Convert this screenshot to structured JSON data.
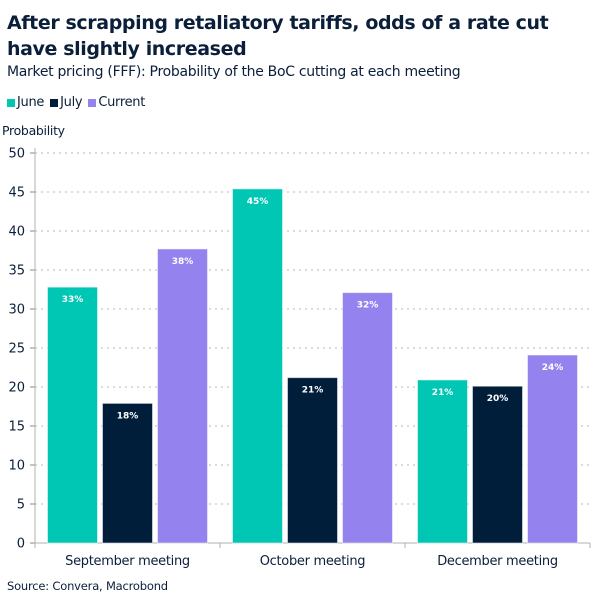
{
  "chart_data": {
    "type": "bar",
    "title": "After scrapping retaliatory tariffs, odds of a rate cut have slightly increased",
    "subtitle": "Market pricing (FFF): Probability of the BoC cutting at each meeting",
    "ylabel": "Probability",
    "xlabel": "",
    "ylim": [
      0,
      50
    ],
    "yticks": [
      0,
      5,
      10,
      15,
      20,
      25,
      30,
      35,
      40,
      45,
      50
    ],
    "grid": true,
    "legend_position": "top-left",
    "categories": [
      "September meeting",
      "October meeting",
      "December meeting"
    ],
    "series": [
      {
        "name": "June",
        "color": "#00c7b4",
        "values": [
          32.8,
          45.4,
          20.9
        ],
        "labels": [
          "33%",
          "45%",
          "21%"
        ]
      },
      {
        "name": "July",
        "color": "#001e3a",
        "values": [
          17.9,
          21.2,
          20.1
        ],
        "labels": [
          "18%",
          "21%",
          "20%"
        ]
      },
      {
        "name": "Current",
        "color": "#9483ef",
        "values": [
          37.7,
          32.1,
          24.1
        ],
        "labels": [
          "38%",
          "32%",
          "24%"
        ]
      }
    ],
    "source": "Source: Convera, Macrobond"
  }
}
